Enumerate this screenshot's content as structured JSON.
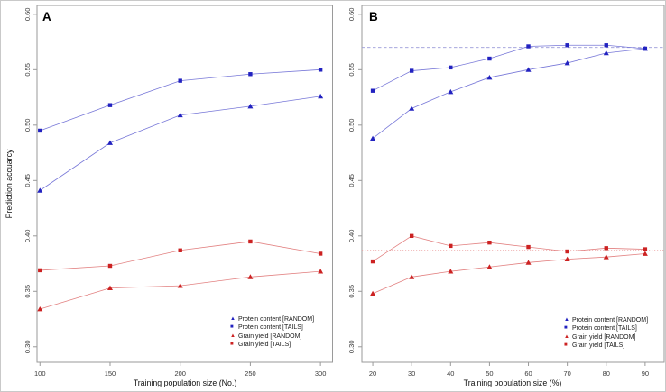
{
  "figure": {
    "colors": {
      "blue_marker": "#2222c0",
      "blue_line": "#7878d8",
      "blue_ref": "#9a9ad8",
      "red_marker": "#cc2222",
      "red_line": "#e28080",
      "red_ref": "#eb9a9a",
      "axis": "#9a9a9a",
      "tick_text": "#3a3a3a"
    }
  },
  "chart_data": [
    {
      "type": "line",
      "panel_label": "A",
      "xlabel": "Training population size (No.)",
      "ylabel": "Prediction accuarcy",
      "x_ticks": [
        100,
        150,
        200,
        250,
        300
      ],
      "y_ticks": [
        0.3,
        0.35,
        0.4,
        0.45,
        0.5,
        0.55,
        0.6
      ],
      "xlim": [
        97.9,
        308.6
      ],
      "ylim": [
        0.286,
        0.608
      ],
      "grid": false,
      "legend_position": "bottom-right",
      "x": [
        100,
        150,
        200,
        250,
        300
      ],
      "series": [
        {
          "name": "Protein content [RANDOM]",
          "marker": "triangle",
          "color_key": "blue",
          "values": [
            0.441,
            0.484,
            0.509,
            0.517,
            0.526
          ]
        },
        {
          "name": "Protein content [TAILS]",
          "marker": "square",
          "color_key": "blue",
          "values": [
            0.495,
            0.518,
            0.54,
            0.546,
            0.55
          ]
        },
        {
          "name": "Grain yield [RANDOM]",
          "marker": "triangle",
          "color_key": "red",
          "values": [
            0.334,
            0.353,
            0.355,
            0.363,
            0.368
          ]
        },
        {
          "name": "Grain yield [TAILS]",
          "marker": "square",
          "color_key": "red",
          "values": [
            0.369,
            0.373,
            0.387,
            0.395,
            0.384
          ]
        }
      ],
      "ref_lines": []
    },
    {
      "type": "line",
      "panel_label": "B",
      "xlabel": "Training population size (%)",
      "ylabel": "",
      "x_ticks": [
        20,
        30,
        40,
        50,
        60,
        70,
        80,
        90
      ],
      "y_ticks": [
        0.3,
        0.35,
        0.4,
        0.45,
        0.5,
        0.55,
        0.6
      ],
      "xlim": [
        17.2,
        94.9
      ],
      "ylim": [
        0.286,
        0.608
      ],
      "grid": false,
      "legend_position": "bottom-right",
      "x": [
        20,
        30,
        40,
        50,
        60,
        70,
        80,
        90
      ],
      "series": [
        {
          "name": "Protein content [RANDOM]",
          "marker": "triangle",
          "color_key": "blue",
          "values": [
            0.488,
            0.515,
            0.53,
            0.543,
            0.55,
            0.556,
            0.565,
            0.569
          ]
        },
        {
          "name": "Protein content [TAILS]",
          "marker": "square",
          "color_key": "blue",
          "values": [
            0.531,
            0.549,
            0.552,
            0.56,
            0.571,
            0.572,
            0.572,
            0.569
          ]
        },
        {
          "name": "Grain yield [RANDOM]",
          "marker": "triangle",
          "color_key": "red",
          "values": [
            0.348,
            0.363,
            0.368,
            0.372,
            0.376,
            0.379,
            0.381,
            0.384
          ]
        },
        {
          "name": "Grain yield [TAILS]",
          "marker": "square",
          "color_key": "red",
          "values": [
            0.377,
            0.4,
            0.391,
            0.394,
            0.39,
            0.386,
            0.389,
            0.388
          ]
        }
      ],
      "ref_lines": [
        {
          "y": 0.57,
          "color_key": "blue",
          "style": "dashed"
        },
        {
          "y": 0.387,
          "color_key": "red",
          "style": "dotted"
        }
      ]
    }
  ]
}
